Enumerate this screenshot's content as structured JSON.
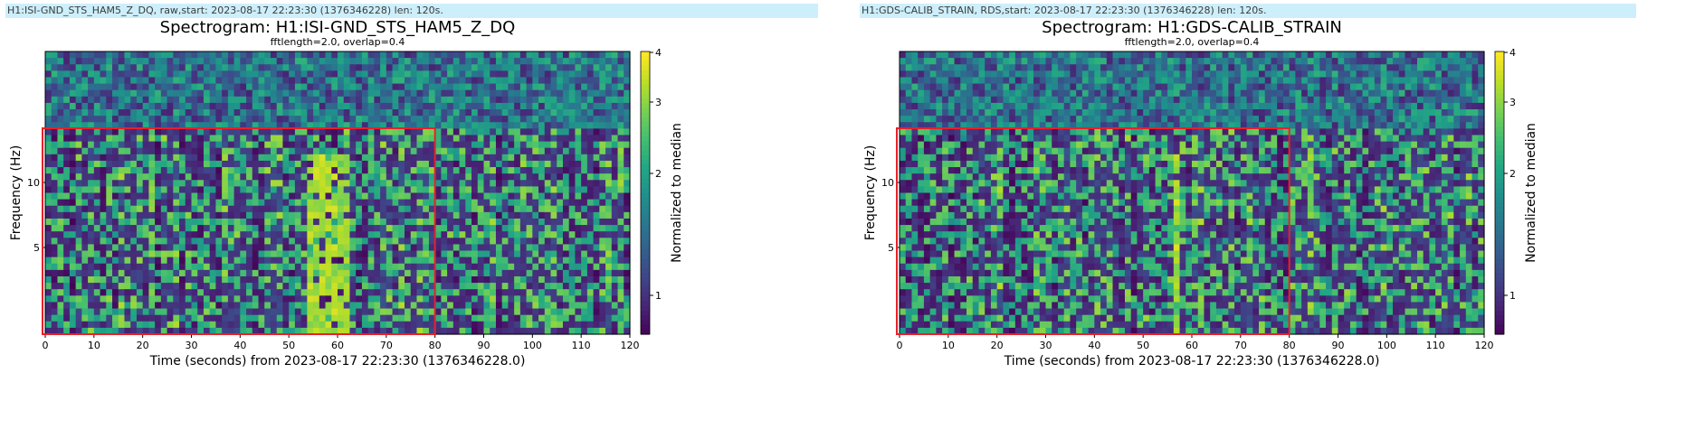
{
  "chart_data": [
    {
      "type": "heatmap",
      "header": "H1:ISI-GND_STS_HAM5_Z_DQ, raw,start: 2023-08-17 22:23:30 (1376346228) len: 120s.",
      "title": "Spectrogram: H1:ISI-GND_STS_HAM5_Z_DQ",
      "subtitle": "fftlength=2.0, overlap=0.4",
      "xlabel": "Time (seconds) from 2023-08-17 22:23:30 (1376346228.0)",
      "ylabel": "Frequency (Hz)",
      "xlim": [
        0,
        120
      ],
      "xticks": [
        "0",
        "10",
        "20",
        "30",
        "40",
        "50",
        "60",
        "70",
        "80",
        "90",
        "100",
        "110",
        "120"
      ],
      "yticks": [
        {
          "label": "10",
          "value": 10
        },
        {
          "label": "5",
          "value": 5
        }
      ],
      "colorbar": {
        "label": "Normalized to median",
        "ticks": [
          "4",
          "3",
          "2",
          "1"
        ],
        "range": [
          0.5,
          4
        ]
      },
      "highlight": {
        "x": [
          0,
          80
        ]
      },
      "seed": 7,
      "hot_features": [
        {
          "t": [
            54,
            60
          ],
          "level": 0.95
        },
        {
          "t": [
            60,
            62
          ],
          "level": 0.9
        }
      ]
    },
    {
      "type": "heatmap",
      "header": "H1:GDS-CALIB_STRAIN, RDS,start: 2023-08-17 22:23:30 (1376346228) len: 120s.",
      "title": "Spectrogram: H1:GDS-CALIB_STRAIN",
      "subtitle": "fftlength=2.0, overlap=0.4",
      "xlabel": "Time (seconds) from 2023-08-17 22:23:30 (1376346228.0)",
      "ylabel": "Frequency (Hz)",
      "xlim": [
        0,
        120
      ],
      "xticks": [
        "0",
        "10",
        "20",
        "30",
        "40",
        "50",
        "60",
        "70",
        "80",
        "90",
        "100",
        "110",
        "120"
      ],
      "yticks": [
        {
          "label": "10",
          "value": 10
        },
        {
          "label": "5",
          "value": 5
        }
      ],
      "colorbar": {
        "label": "Normalized to median",
        "ticks": [
          "4",
          "3",
          "2",
          "1"
        ],
        "range": [
          0.5,
          4
        ]
      },
      "highlight": {
        "x": [
          0,
          80
        ]
      },
      "seed": 19,
      "hot_features": [
        {
          "t": [
            56,
            58
          ],
          "level": 0.95
        }
      ]
    }
  ]
}
